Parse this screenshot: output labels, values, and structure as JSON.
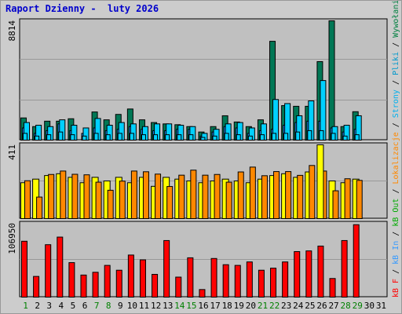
{
  "title": "Raport Dzienny -  luty 2026",
  "colors": {
    "frame": "#cccccc",
    "panel": "#c0c0c0",
    "grid": "#999999",
    "title": "#0000cc",
    "wizyty": "#006666",
    "strony": "#1e90ff",
    "pliki": "#00d0ff",
    "wywolania": "#007755",
    "lokalizacje": "#ff8800",
    "kb_out": "#ffff00",
    "kb_in": "#ff9933",
    "kb_f": "#ff0000",
    "weekend_day": "#008000",
    "weekday": "#000000"
  },
  "right_legend": {
    "top": [
      {
        "text": "Wywołania",
        "color": "#008040"
      },
      {
        "text": " / ",
        "color": "#000000"
      },
      {
        "text": "Pliki",
        "color": "#0099cc"
      },
      {
        "text": " / ",
        "color": "#000000"
      },
      {
        "text": "Strony",
        "color": "#00b0ee"
      },
      {
        "text": " / ",
        "color": "#000000"
      },
      {
        "text": "Lokalizacje",
        "color": "#ff8800"
      },
      {
        "text": " / ",
        "color": "#000000"
      },
      {
        "text": "kB Out",
        "color": "#00aa00"
      },
      {
        "text": " / ",
        "color": "#000000"
      },
      {
        "text": "kB In",
        "color": "#3399ff"
      },
      {
        "text": " / ",
        "color": "#000000"
      },
      {
        "text": "kB F",
        "color": "#ff0000"
      }
    ]
  },
  "chart_data": [
    {
      "type": "bar",
      "panel": "hits",
      "ymax_label": "8814",
      "ylim": [
        0,
        8814
      ],
      "x": [
        1,
        2,
        3,
        4,
        5,
        6,
        7,
        8,
        9,
        10,
        11,
        12,
        13,
        14,
        15,
        16,
        17,
        18,
        19,
        20,
        21,
        22,
        23,
        24,
        25,
        26,
        27,
        28,
        29,
        30,
        31
      ],
      "series": [
        {
          "key": "hits",
          "values": [
            1640,
            1000,
            1400,
            1400,
            1580,
            0,
            2080,
            1500,
            1900,
            2300,
            1500,
            1300,
            1200,
            1140,
            1000,
            600,
            1000,
            1800,
            1340,
            1000,
            1500,
            7300,
            2550,
            2500,
            2500,
            5800,
            8814,
            1000,
            2100,
            0,
            0
          ]
        },
        {
          "key": "files",
          "values": [
            1300,
            1100,
            1000,
            1500,
            1100,
            900,
            1600,
            1100,
            1300,
            1200,
            1000,
            1200,
            1200,
            1100,
            1000,
            500,
            800,
            1200,
            1300,
            900,
            1200,
            3000,
            2700,
            1800,
            2900,
            4400,
            1000,
            1100,
            1800,
            0,
            0
          ]
        },
        {
          "key": "pages",
          "values": [
            900,
            500,
            700,
            1200,
            700,
            500,
            900,
            700,
            800,
            1000,
            800,
            700,
            700,
            800,
            800,
            300,
            600,
            1000,
            900,
            500,
            700,
            800,
            1100,
            1300,
            1400,
            1400,
            900,
            600,
            800,
            0,
            0
          ]
        },
        {
          "key": "visits",
          "values": [
            500,
            300,
            400,
            600,
            400,
            300,
            500,
            400,
            500,
            500,
            400,
            400,
            400,
            400,
            400,
            200,
            300,
            500,
            400,
            300,
            400,
            500,
            500,
            600,
            700,
            700,
            500,
            300,
            400,
            0,
            0
          ]
        }
      ]
    },
    {
      "type": "bar",
      "panel": "visits",
      "ymax_label": "411",
      "ylim": [
        0,
        411
      ],
      "x": [
        1,
        2,
        3,
        4,
        5,
        6,
        7,
        8,
        9,
        10,
        11,
        12,
        13,
        14,
        15,
        16,
        17,
        18,
        19,
        20,
        21,
        22,
        23,
        24,
        25,
        26,
        27,
        28,
        29,
        30,
        31
      ],
      "series": [
        {
          "key": "kb_out",
          "values": [
            200,
            220,
            240,
            250,
            230,
            200,
            230,
            210,
            230,
            200,
            230,
            180,
            230,
            220,
            210,
            200,
            210,
            220,
            210,
            200,
            220,
            240,
            250,
            230,
            260,
            260,
            210,
            200,
            220,
            0,
            0
          ]
        },
        {
          "key": "lokalizacje",
          "values": [
            211,
            120,
            246,
            265,
            247,
            244,
            203,
            158,
            209,
            265,
            261,
            248,
            179,
            242,
            270,
            242,
            246,
            203,
            260,
            287,
            239,
            262,
            262,
            241,
            296,
            265,
            155,
            222,
            213,
            0,
            0
          ]
        }
      ]
    },
    {
      "type": "bar",
      "panel": "kbf",
      "ymax_label": "106950",
      "ylim": [
        0,
        106950
      ],
      "x": [
        1,
        2,
        3,
        4,
        5,
        6,
        7,
        8,
        9,
        10,
        11,
        12,
        13,
        14,
        15,
        16,
        17,
        18,
        19,
        20,
        21,
        22,
        23,
        24,
        25,
        26,
        27,
        28,
        29,
        30,
        31
      ],
      "series": [
        {
          "key": "kb_f",
          "values": [
            81000,
            30000,
            76000,
            87000,
            50000,
            32000,
            36000,
            46000,
            39000,
            61000,
            54000,
            33000,
            82000,
            29000,
            57000,
            11000,
            56000,
            47000,
            46000,
            51000,
            39000,
            42000,
            51000,
            66000,
            67000,
            74000,
            27000,
            82000,
            105000,
            0,
            0
          ]
        }
      ]
    }
  ]
}
